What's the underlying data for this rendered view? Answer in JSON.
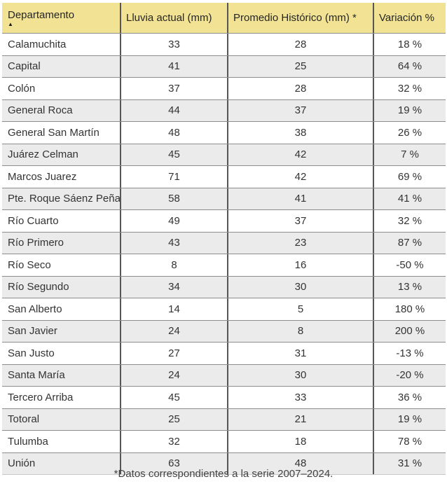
{
  "table": {
    "columns": [
      {
        "label": "Departamento",
        "sorted": "ascending"
      },
      {
        "label": "Lluvia actual (mm)"
      },
      {
        "label": "Promedio Histórico (mm) *"
      },
      {
        "label": "Variación %"
      }
    ],
    "rows": [
      {
        "departamento": "Calamuchita",
        "lluvia_actual": "33",
        "promedio_historico": "28",
        "variacion": "18 %"
      },
      {
        "departamento": "Capital",
        "lluvia_actual": "41",
        "promedio_historico": "25",
        "variacion": "64 %"
      },
      {
        "departamento": "Colón",
        "lluvia_actual": "37",
        "promedio_historico": "28",
        "variacion": "32 %"
      },
      {
        "departamento": "General Roca",
        "lluvia_actual": "44",
        "promedio_historico": "37",
        "variacion": "19 %"
      },
      {
        "departamento": "General San Martín",
        "lluvia_actual": "48",
        "promedio_historico": "38",
        "variacion": "26 %"
      },
      {
        "departamento": "Juárez Celman",
        "lluvia_actual": "45",
        "promedio_historico": "42",
        "variacion": "7 %"
      },
      {
        "departamento": "Marcos Juarez",
        "lluvia_actual": "71",
        "promedio_historico": "42",
        "variacion": "69 %"
      },
      {
        "departamento": "Pte. Roque Sáenz Peña",
        "lluvia_actual": "58",
        "promedio_historico": "41",
        "variacion": "41 %"
      },
      {
        "departamento": "Río Cuarto",
        "lluvia_actual": "49",
        "promedio_historico": "37",
        "variacion": "32 %"
      },
      {
        "departamento": "Río Primero",
        "lluvia_actual": "43",
        "promedio_historico": "23",
        "variacion": "87 %"
      },
      {
        "departamento": "Río Seco",
        "lluvia_actual": "8",
        "promedio_historico": "16",
        "variacion": "-50 %"
      },
      {
        "departamento": "Río Segundo",
        "lluvia_actual": "34",
        "promedio_historico": "30",
        "variacion": "13 %"
      },
      {
        "departamento": "San Alberto",
        "lluvia_actual": "14",
        "promedio_historico": "5",
        "variacion": "180 %"
      },
      {
        "departamento": "San Javier",
        "lluvia_actual": "24",
        "promedio_historico": "8",
        "variacion": "200 %"
      },
      {
        "departamento": "San Justo",
        "lluvia_actual": "27",
        "promedio_historico": "31",
        "variacion": "-13 %"
      },
      {
        "departamento": "Santa María",
        "lluvia_actual": "24",
        "promedio_historico": "30",
        "variacion": "-20 %"
      },
      {
        "departamento": "Tercero Arriba",
        "lluvia_actual": "45",
        "promedio_historico": "33",
        "variacion": "36 %"
      },
      {
        "departamento": "Totoral",
        "lluvia_actual": "25",
        "promedio_historico": "21",
        "variacion": "19 %"
      },
      {
        "departamento": "Tulumba",
        "lluvia_actual": "32",
        "promedio_historico": "18",
        "variacion": "78 %"
      },
      {
        "departamento": "Unión",
        "lluvia_actual": "63",
        "promedio_historico": "48",
        "variacion": "31 %"
      }
    ]
  },
  "icons": {
    "sort_ascending": "▲"
  },
  "footer": {
    "note": "*Datos correspondientes a la serie 2007–2024."
  },
  "colors": {
    "header_bg": "#F2E394",
    "row_bg": "#FFFFFF",
    "row_alt_bg": "#EBEBEB",
    "grid_vertical": "#565656",
    "grid_horizontal": "#8C8C8C",
    "text": "#333333"
  }
}
